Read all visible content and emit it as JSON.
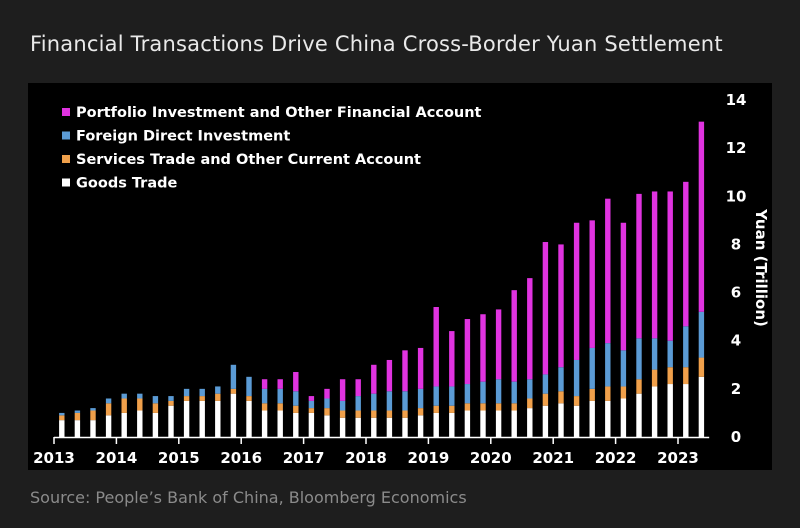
{
  "header": {
    "title": "Financial Transactions Drive China Cross-Border Yuan Settlement"
  },
  "footer": {
    "source": "Source: People’s Bank of China, Bloomberg Economics"
  },
  "chart_data": {
    "type": "bar",
    "stacked": true,
    "title": "Financial Transactions Drive China Cross-Border Yuan Settlement",
    "ylabel": "Yuan (Trillion)",
    "xlabel": "",
    "ylim": [
      0,
      14
    ],
    "yticks": [
      0,
      2,
      4,
      6,
      8,
      10,
      12,
      14
    ],
    "y_axis_side": "right",
    "grid": false,
    "legend_position": "top-left",
    "x_tick_labels": [
      "2013",
      "2014",
      "2015",
      "2016",
      "2017",
      "2018",
      "2019",
      "2020",
      "2021",
      "2022",
      "2023"
    ],
    "categories": [
      "2013Q1",
      "2013Q2",
      "2013Q3",
      "2013Q4",
      "2014Q1",
      "2014Q2",
      "2014Q3",
      "2014Q4",
      "2015Q1",
      "2015Q2",
      "2015Q3",
      "2015Q4",
      "2016Q1",
      "2016Q2",
      "2016Q3",
      "2016Q4",
      "2017Q1",
      "2017Q2",
      "2017Q3",
      "2017Q4",
      "2018Q1",
      "2018Q2",
      "2018Q3",
      "2018Q4",
      "2019Q1",
      "2019Q2",
      "2019Q3",
      "2019Q4",
      "2020Q1",
      "2020Q2",
      "2020Q3",
      "2020Q4",
      "2021Q1",
      "2021Q2",
      "2021Q3",
      "2021Q4",
      "2022Q1",
      "2022Q2",
      "2022Q3",
      "2022Q4",
      "2023Q1",
      "2023Q2"
    ],
    "series": [
      {
        "name": "Goods Trade",
        "color": "#ffffff",
        "values": [
          0.7,
          0.7,
          0.7,
          0.9,
          1.0,
          1.1,
          1.0,
          1.3,
          1.5,
          1.5,
          1.5,
          1.8,
          1.5,
          1.1,
          1.1,
          1.0,
          1.0,
          0.9,
          0.8,
          0.8,
          0.8,
          0.8,
          0.8,
          0.9,
          1.0,
          1.0,
          1.1,
          1.1,
          1.1,
          1.1,
          1.2,
          1.3,
          1.4,
          1.3,
          1.5,
          1.5,
          1.6,
          1.8,
          2.1,
          2.2,
          2.2,
          2.5
        ]
      },
      {
        "name": "Services Trade and Other Current Account",
        "color": "#f0a04b",
        "values": [
          0.2,
          0.3,
          0.4,
          0.5,
          0.6,
          0.5,
          0.4,
          0.2,
          0.2,
          0.2,
          0.3,
          0.2,
          0.2,
          0.3,
          0.3,
          0.3,
          0.2,
          0.3,
          0.3,
          0.3,
          0.3,
          0.3,
          0.3,
          0.3,
          0.3,
          0.3,
          0.3,
          0.3,
          0.3,
          0.3,
          0.4,
          0.5,
          0.5,
          0.4,
          0.5,
          0.6,
          0.5,
          0.6,
          0.7,
          0.7,
          0.7,
          0.8
        ]
      },
      {
        "name": "Foreign Direct Investment",
        "color": "#5b9bd5",
        "values": [
          0.1,
          0.1,
          0.1,
          0.2,
          0.2,
          0.2,
          0.3,
          0.2,
          0.3,
          0.3,
          0.3,
          1.0,
          0.8,
          0.6,
          0.6,
          0.6,
          0.3,
          0.4,
          0.4,
          0.6,
          0.7,
          0.8,
          0.8,
          0.8,
          0.8,
          0.8,
          0.8,
          0.9,
          1.0,
          0.9,
          0.8,
          0.8,
          1.0,
          1.5,
          1.7,
          1.8,
          1.5,
          1.7,
          1.3,
          1.1,
          1.7,
          1.9
        ]
      },
      {
        "name": "Portfolio Investment and Other Financial Account",
        "color": "#e033e0",
        "values": [
          0.0,
          0.0,
          0.0,
          0.0,
          0.0,
          0.0,
          0.0,
          0.0,
          0.0,
          0.0,
          0.0,
          0.0,
          0.0,
          0.4,
          0.4,
          0.8,
          0.2,
          0.4,
          0.9,
          0.7,
          1.2,
          1.3,
          1.7,
          1.7,
          3.3,
          2.3,
          2.7,
          2.8,
          2.9,
          3.8,
          4.2,
          5.5,
          5.1,
          5.7,
          5.3,
          6.0,
          5.3,
          6.0,
          6.1,
          6.2,
          6.0,
          7.9
        ]
      }
    ]
  }
}
